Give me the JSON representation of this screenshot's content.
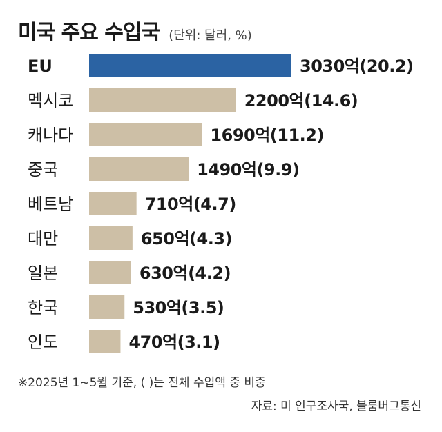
{
  "chart_data": {
    "type": "bar",
    "orientation": "horizontal",
    "title": "미국 주요 수입국",
    "unit_note": "(단위: 달러, %)",
    "categories": [
      "EU",
      "멕시코",
      "캐나다",
      "중국",
      "베트남",
      "대만",
      "일본",
      "한국",
      "인도"
    ],
    "values": [
      3030,
      2200,
      1690,
      1490,
      710,
      650,
      630,
      530,
      470
    ],
    "shares": [
      20.2,
      14.6,
      11.2,
      9.9,
      4.7,
      4.3,
      4.2,
      3.5,
      3.1
    ],
    "data_labels": [
      "3030억(20.2)",
      "2200억(14.6)",
      "1690억(11.2)",
      "1490억(9.9)",
      "710억(4.7)",
      "650억(4.3)",
      "630억(4.2)",
      "530억(3.5)",
      "470억(3.1)"
    ],
    "highlight_index": 0,
    "xlim": [
      0,
      3030
    ],
    "grid": false,
    "legend": "none"
  },
  "colors": {
    "highlight_bar": "#2b63a3",
    "bar": "#cdbfa6",
    "text": "#1a1a1a"
  },
  "footnote": "※2025년 1~5월 기준, (   )는 전체 수입액 중 비중",
  "source": "자료: 미 인구조사국, 블룸버그통신"
}
